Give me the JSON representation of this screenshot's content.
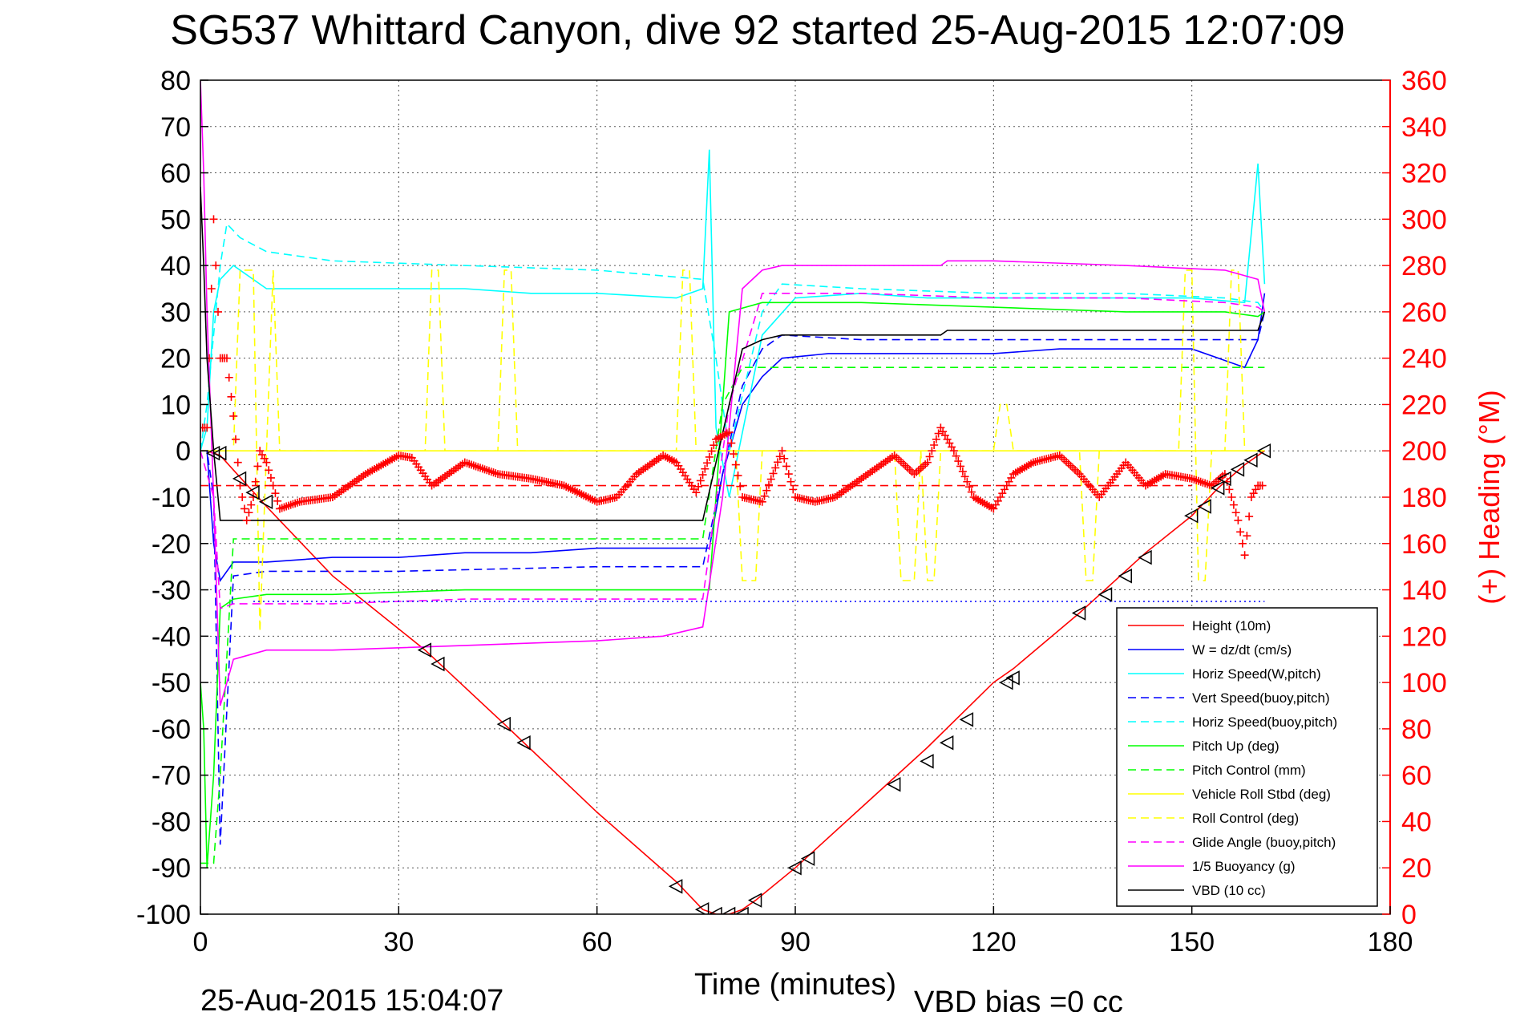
{
  "chart_data": {
    "type": "line",
    "title": "SG537 Whittard Canyon, dive 92 started 25-Aug-2015 12:07:09",
    "xlabel": "Time (minutes)",
    "ylabel": "",
    "y2label": "(+) Heading (°M)",
    "xlim": [
      0,
      180
    ],
    "ylim": [
      -100,
      80
    ],
    "y2lim": [
      0,
      360
    ],
    "xticks": [
      0,
      30,
      60,
      90,
      120,
      150,
      180
    ],
    "yticks": [
      80,
      70,
      60,
      50,
      40,
      30,
      20,
      10,
      0,
      -10,
      -20,
      -30,
      -40,
      -50,
      -60,
      -70,
      -80,
      -90,
      -100
    ],
    "y2ticks": [
      360,
      340,
      320,
      300,
      280,
      260,
      240,
      220,
      200,
      180,
      160,
      140,
      120,
      100,
      80,
      60,
      40,
      20,
      0
    ],
    "grid": true,
    "legend_position": "lower-right",
    "footer_left": "25-Aug-2015 15:04:07",
    "footer_right": "VBD bias =0 cc",
    "series": [
      {
        "name": "Height (10m)",
        "color": "#ff0000",
        "style": "solid",
        "x": [
          0,
          1,
          3,
          10,
          20,
          34,
          46,
          60,
          72,
          76,
          78,
          80,
          82,
          84,
          90,
          100,
          110,
          120,
          123,
          133,
          143,
          150,
          154,
          158,
          161
        ],
        "y": [
          0,
          0,
          -1,
          -12,
          -27,
          -43,
          -59,
          -78,
          -93,
          -99,
          -100,
          -100,
          -99,
          -97,
          -90,
          -77,
          -64,
          -50,
          -47,
          -35,
          -22,
          -14,
          -8,
          -3,
          0
        ]
      },
      {
        "name": "W = dz/dt (cm/s)",
        "color": "#0000ff",
        "style": "solid",
        "x": [
          0,
          1,
          2,
          3,
          5,
          10,
          20,
          30,
          40,
          50,
          60,
          70,
          77,
          79,
          82,
          85,
          88,
          95,
          110,
          120,
          130,
          140,
          150,
          158,
          160,
          161
        ],
        "y": [
          0,
          0,
          -20,
          -28,
          -24,
          -24,
          -23,
          -23,
          -22,
          -22,
          -21,
          -21,
          -21,
          -5,
          10,
          16,
          20,
          21,
          21,
          21,
          22,
          22,
          22,
          18,
          24,
          34
        ]
      },
      {
        "name": "Horiz Speed(W,pitch)",
        "color": "#00ffff",
        "style": "solid",
        "x": [
          0,
          1,
          2,
          3,
          5,
          10,
          20,
          30,
          40,
          50,
          60,
          72,
          76,
          77,
          78,
          80,
          85,
          90,
          100,
          110,
          120,
          130,
          140,
          150,
          158,
          160,
          161
        ],
        "y": [
          0,
          5,
          30,
          37,
          40,
          35,
          35,
          35,
          35,
          34,
          34,
          33,
          35,
          65,
          5,
          -10,
          25,
          33,
          34,
          33,
          33,
          33,
          33,
          33,
          32,
          62,
          36
        ]
      },
      {
        "name": "Vert Speed(buoy,pitch)",
        "color": "#0000ff",
        "style": "dashed",
        "x": [
          0,
          1,
          2,
          3,
          5,
          10,
          30,
          60,
          76,
          79,
          82,
          85,
          88,
          100,
          120,
          140,
          155,
          160,
          161
        ],
        "y": [
          0,
          0,
          -10,
          -85,
          -27,
          -26,
          -26,
          -25,
          -25,
          -5,
          14,
          22,
          25,
          24,
          24,
          24,
          24,
          24,
          30
        ]
      },
      {
        "name": "Horiz Speed(buoy,pitch)",
        "color": "#00ffff",
        "style": "dashed",
        "x": [
          0,
          1,
          3,
          4,
          6,
          10,
          20,
          40,
          60,
          76,
          78,
          80,
          85,
          88,
          100,
          120,
          140,
          155,
          160,
          161
        ],
        "y": [
          0,
          10,
          40,
          49,
          46,
          43,
          41,
          40,
          39,
          37,
          20,
          0,
          30,
          36,
          35,
          34,
          34,
          33,
          32,
          30
        ]
      },
      {
        "name": "Pitch Up (deg)",
        "color": "#00ff00",
        "style": "solid",
        "x": [
          0,
          0.5,
          1,
          2,
          3,
          5,
          10,
          20,
          40,
          60,
          76,
          77,
          80,
          85,
          90,
          100,
          120,
          140,
          155,
          160,
          161
        ],
        "y": [
          -50,
          -60,
          -90,
          -70,
          -34,
          -32,
          -31,
          -31,
          -30,
          -30,
          -30,
          -30,
          30,
          32,
          32,
          32,
          31,
          30,
          30,
          29,
          30
        ]
      },
      {
        "name": "Pitch Control (mm)",
        "color": "#00ff00",
        "style": "dashed",
        "x": [
          0,
          1,
          2,
          3,
          5,
          10,
          30,
          60,
          76,
          79,
          82,
          85,
          90,
          120,
          150,
          158,
          160,
          161
        ],
        "y": [
          -89,
          -89,
          -89,
          -70,
          -19,
          -19,
          -19,
          -19,
          -19,
          10,
          18,
          18,
          18,
          18,
          18,
          18,
          18,
          18
        ]
      },
      {
        "name": "Vehicle Roll Stbd (deg)",
        "color": "#ffff00",
        "style": "solid",
        "x": [
          0,
          5,
          20,
          40,
          60,
          80,
          100,
          120,
          140,
          160,
          161
        ],
        "y": [
          0,
          0,
          0,
          0,
          0,
          0,
          0,
          0,
          0,
          0,
          0
        ]
      },
      {
        "name": "Roll Control (deg)",
        "color": "#ffff00",
        "style": "dashed",
        "x": [
          0,
          5,
          6,
          8,
          9,
          10,
          11,
          12,
          34,
          35,
          36,
          37,
          38,
          45,
          46,
          47,
          48,
          72,
          73,
          74,
          75,
          81,
          82,
          84,
          85,
          86,
          87,
          105,
          106,
          108,
          109,
          110,
          111,
          112,
          113,
          116,
          117,
          120,
          121,
          122,
          123,
          124,
          125,
          133,
          134,
          135,
          136,
          148,
          149,
          150,
          151,
          152,
          153,
          155,
          156,
          157,
          158,
          161
        ],
        "y": [
          0,
          0,
          39,
          39,
          -39,
          0,
          39,
          0,
          0,
          39,
          39,
          0,
          0,
          0,
          39,
          39,
          0,
          0,
          39,
          39,
          0,
          0,
          -28,
          -28,
          0,
          0,
          0,
          0,
          -28,
          -28,
          0,
          -28,
          -28,
          0,
          0,
          0,
          0,
          0,
          10,
          10,
          0,
          0,
          0,
          0,
          -28,
          -28,
          0,
          0,
          39,
          39,
          -28,
          -28,
          0,
          0,
          39,
          39,
          0,
          0
        ]
      },
      {
        "name": "Glide Angle (buoy,pitch)",
        "color": "#ff00ff",
        "style": "dashed",
        "x": [
          0,
          2,
          3,
          5,
          10,
          20,
          40,
          60,
          76,
          80,
          85,
          90,
          100,
          120,
          140,
          155,
          160,
          161
        ],
        "y": [
          0,
          -10,
          -34,
          -33,
          -33,
          -33,
          -32,
          -32,
          -32,
          10,
          34,
          34,
          34,
          33,
          33,
          32,
          31,
          30
        ]
      },
      {
        "name": "1/5 Buoyancy (g)",
        "color": "#ff00ff",
        "style": "solid",
        "x": [
          0,
          0.5,
          1,
          2,
          3,
          4,
          5,
          10,
          20,
          40,
          60,
          70,
          76,
          79,
          82,
          85,
          88,
          100,
          112,
          113,
          120,
          140,
          155,
          160,
          161
        ],
        "y": [
          80,
          60,
          30,
          -10,
          -55,
          -50,
          -45,
          -43,
          -43,
          -42,
          -41,
          -40,
          -38,
          -10,
          35,
          39,
          40,
          40,
          40,
          41,
          41,
          40,
          39,
          37,
          30
        ]
      },
      {
        "name": "VBD (10 cc)",
        "color": "#000000",
        "style": "solid",
        "x": [
          0,
          0.5,
          1,
          2,
          3,
          5,
          10,
          30,
          60,
          76,
          80,
          82,
          85,
          88,
          100,
          112,
          113,
          130,
          150,
          160,
          161
        ],
        "y": [
          57,
          40,
          20,
          0,
          -15,
          -15,
          -15,
          -15,
          -15,
          -15,
          10,
          22,
          24,
          25,
          25,
          25,
          26,
          26,
          26,
          26,
          30
        ]
      },
      {
        "name": "Heading",
        "color": "#ff0000",
        "style": "plus",
        "axis": "right",
        "x": [
          0,
          1,
          2,
          3,
          4,
          5,
          6,
          7,
          8,
          9,
          10,
          12,
          15,
          20,
          25,
          30,
          32,
          35,
          40,
          45,
          50,
          55,
          60,
          63,
          66,
          70,
          72,
          75,
          78,
          80,
          82,
          85,
          88,
          90,
          93,
          96,
          100,
          105,
          108,
          110,
          112,
          114,
          117,
          120,
          123,
          126,
          130,
          133,
          136,
          140,
          143,
          146,
          150,
          153,
          155,
          157,
          158,
          159,
          160,
          161
        ],
        "y": [
          210,
          210,
          300,
          240,
          240,
          215,
          185,
          170,
          180,
          200,
          195,
          175,
          178,
          180,
          190,
          198,
          197,
          185,
          195,
          190,
          188,
          185,
          178,
          180,
          190,
          198,
          195,
          182,
          205,
          208,
          180,
          178,
          200,
          180,
          178,
          180,
          188,
          198,
          190,
          195,
          210,
          200,
          180,
          175,
          190,
          195,
          198,
          190,
          180,
          195,
          185,
          190,
          188,
          185,
          190,
          170,
          155,
          180,
          185,
          185
        ]
      },
      {
        "name": "",
        "color": "#ff0000",
        "style": "dashed",
        "axis": "right",
        "x": [
          0,
          150
        ],
        "y": [
          185,
          185
        ]
      },
      {
        "name": "",
        "color": "#0000ff",
        "style": "dotted",
        "x": [
          8,
          161
        ],
        "y": [
          -32.5,
          -32.5
        ]
      }
    ],
    "markers": {
      "style": "triangle-left",
      "color": "#000000",
      "x": [
        2,
        3,
        6,
        8,
        10,
        34,
        36,
        46,
        49,
        72,
        76,
        78,
        80,
        82,
        84,
        90,
        92,
        105,
        110,
        113,
        116,
        122,
        123,
        133,
        137,
        140,
        143,
        150,
        152,
        154,
        155,
        157,
        159,
        161
      ],
      "y": [
        -0.5,
        -0.5,
        -6,
        -9,
        -11,
        -43,
        -46,
        -59,
        -63,
        -94,
        -99,
        -100,
        -100,
        -100,
        -97,
        -90,
        -88,
        -72,
        -67,
        -63,
        -58,
        -50,
        -49,
        -35,
        -31,
        -27,
        -23,
        -14,
        -12,
        -8,
        -6,
        -4,
        -2,
        0
      ]
    }
  }
}
